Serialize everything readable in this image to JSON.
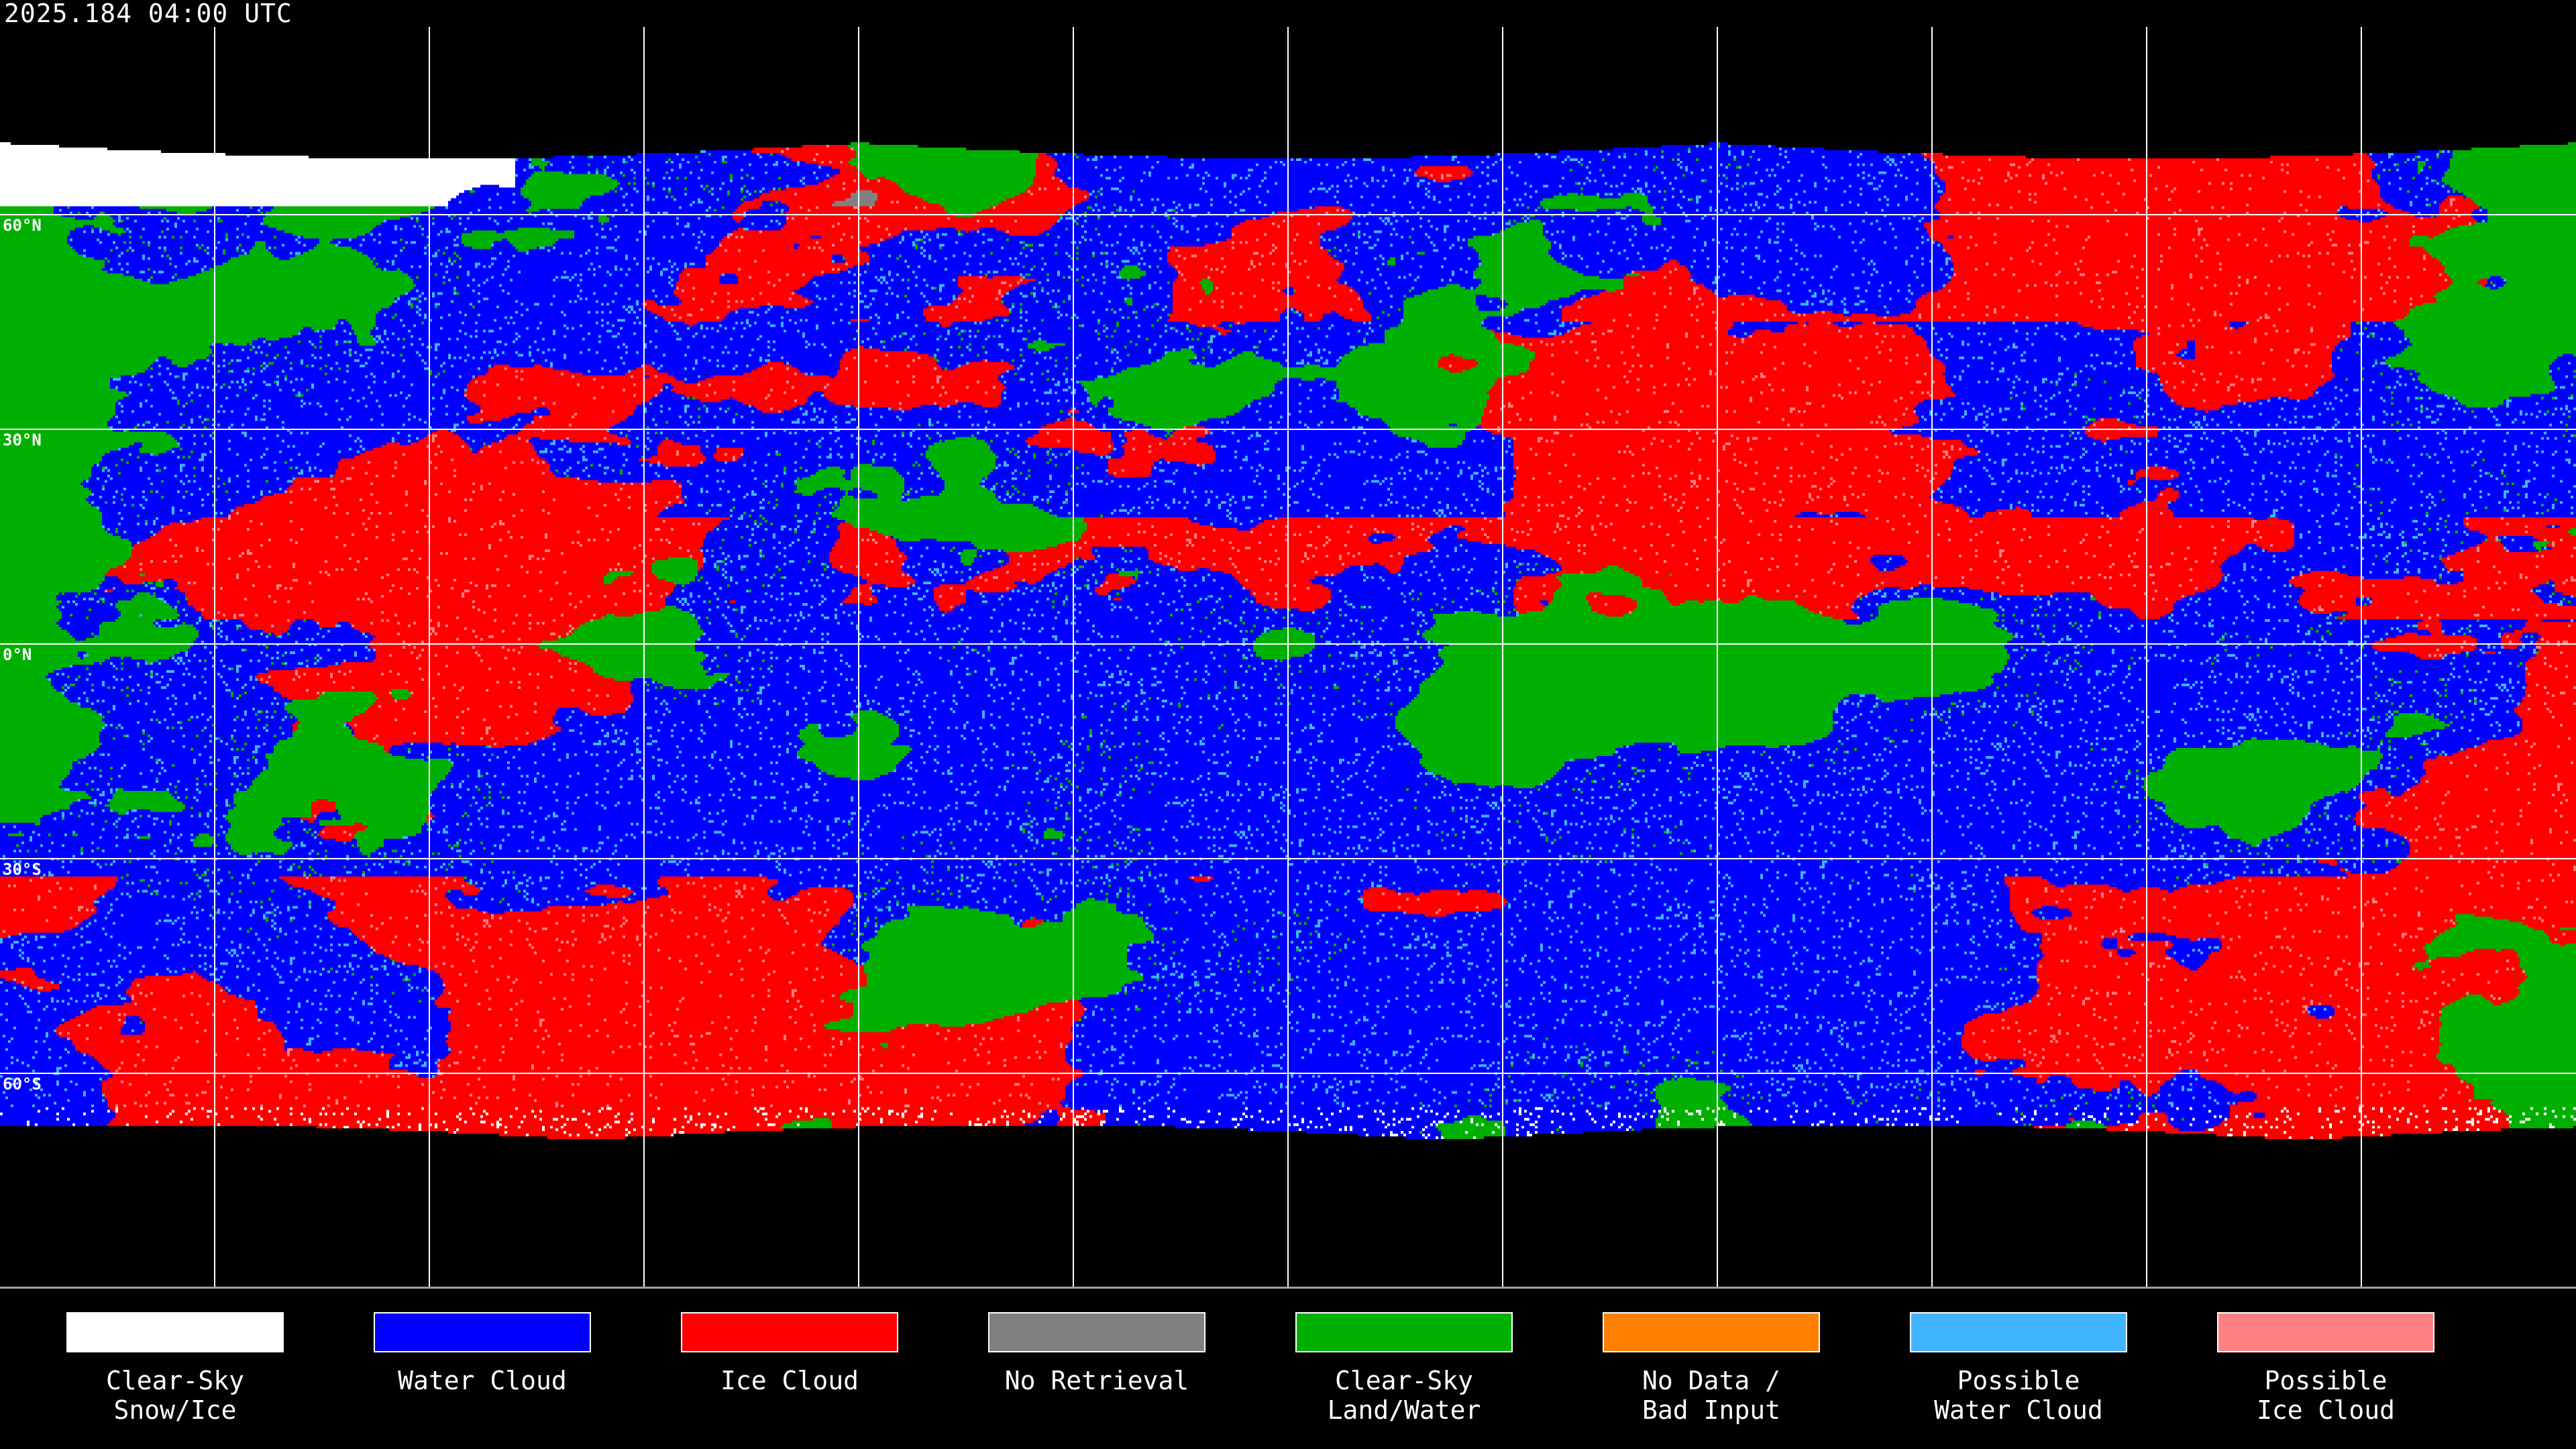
{
  "title": "2025.184 04:00 UTC",
  "lat_labels": [
    "60°N",
    "30°N",
    "0°N",
    "30°S",
    "60°S"
  ],
  "legend": [
    {
      "label": "Clear-Sky\nSnow/Ice",
      "color": "#ffffff"
    },
    {
      "label": "Water Cloud",
      "color": "#0000ff"
    },
    {
      "label": "Ice Cloud",
      "color": "#ff0000"
    },
    {
      "label": "No Retrieval",
      "color": "#808080"
    },
    {
      "label": "Clear-Sky\nLand/Water",
      "color": "#00b000"
    },
    {
      "label": "No Data /\nBad Input",
      "color": "#ff8000"
    },
    {
      "label": "Possible\nWater Cloud",
      "color": "#40b4ff"
    },
    {
      "label": "Possible\nIce Cloud",
      "color": "#ff8080"
    }
  ]
}
